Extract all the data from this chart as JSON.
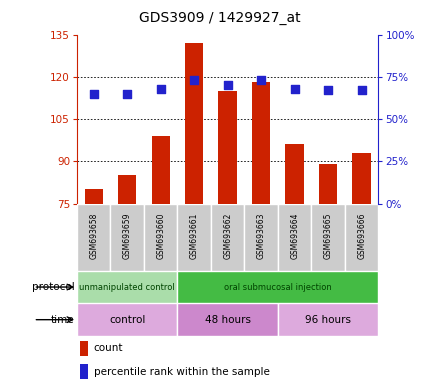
{
  "title": "GDS3909 / 1429927_at",
  "samples": [
    "GSM693658",
    "GSM693659",
    "GSM693660",
    "GSM693661",
    "GSM693662",
    "GSM693663",
    "GSM693664",
    "GSM693665",
    "GSM693666"
  ],
  "counts": [
    80,
    85,
    99,
    132,
    115,
    118,
    96,
    89,
    93
  ],
  "percentile_ranks": [
    65,
    65,
    68,
    73,
    70,
    73,
    68,
    67,
    67
  ],
  "ylim_left": [
    75,
    135
  ],
  "ylim_right": [
    0,
    100
  ],
  "yticks_left": [
    75,
    90,
    105,
    120,
    135
  ],
  "yticks_right": [
    0,
    25,
    50,
    75,
    100
  ],
  "bar_color": "#cc2200",
  "dot_color": "#2222cc",
  "grid_color": "#000000",
  "protocol_groups": [
    {
      "label": "unmanipulated control",
      "start": 0,
      "end": 3,
      "color": "#aaddaa"
    },
    {
      "label": "oral submucosal injection",
      "start": 3,
      "end": 9,
      "color": "#44bb44"
    }
  ],
  "time_groups": [
    {
      "label": "control",
      "start": 0,
      "end": 3,
      "color": "#ddaadd"
    },
    {
      "label": "48 hours",
      "start": 3,
      "end": 6,
      "color": "#cc88cc"
    },
    {
      "label": "96 hours",
      "start": 6,
      "end": 9,
      "color": "#ddaadd"
    }
  ],
  "protocol_label": "protocol",
  "time_label": "time",
  "legend_count_label": "count",
  "legend_pct_label": "percentile rank within the sample",
  "title_fontsize": 10,
  "axis_label_color_left": "#cc2200",
  "axis_label_color_right": "#2222cc",
  "bar_width": 0.55,
  "dot_size": 35,
  "sample_box_color": "#cccccc",
  "bg_color": "#ffffff"
}
